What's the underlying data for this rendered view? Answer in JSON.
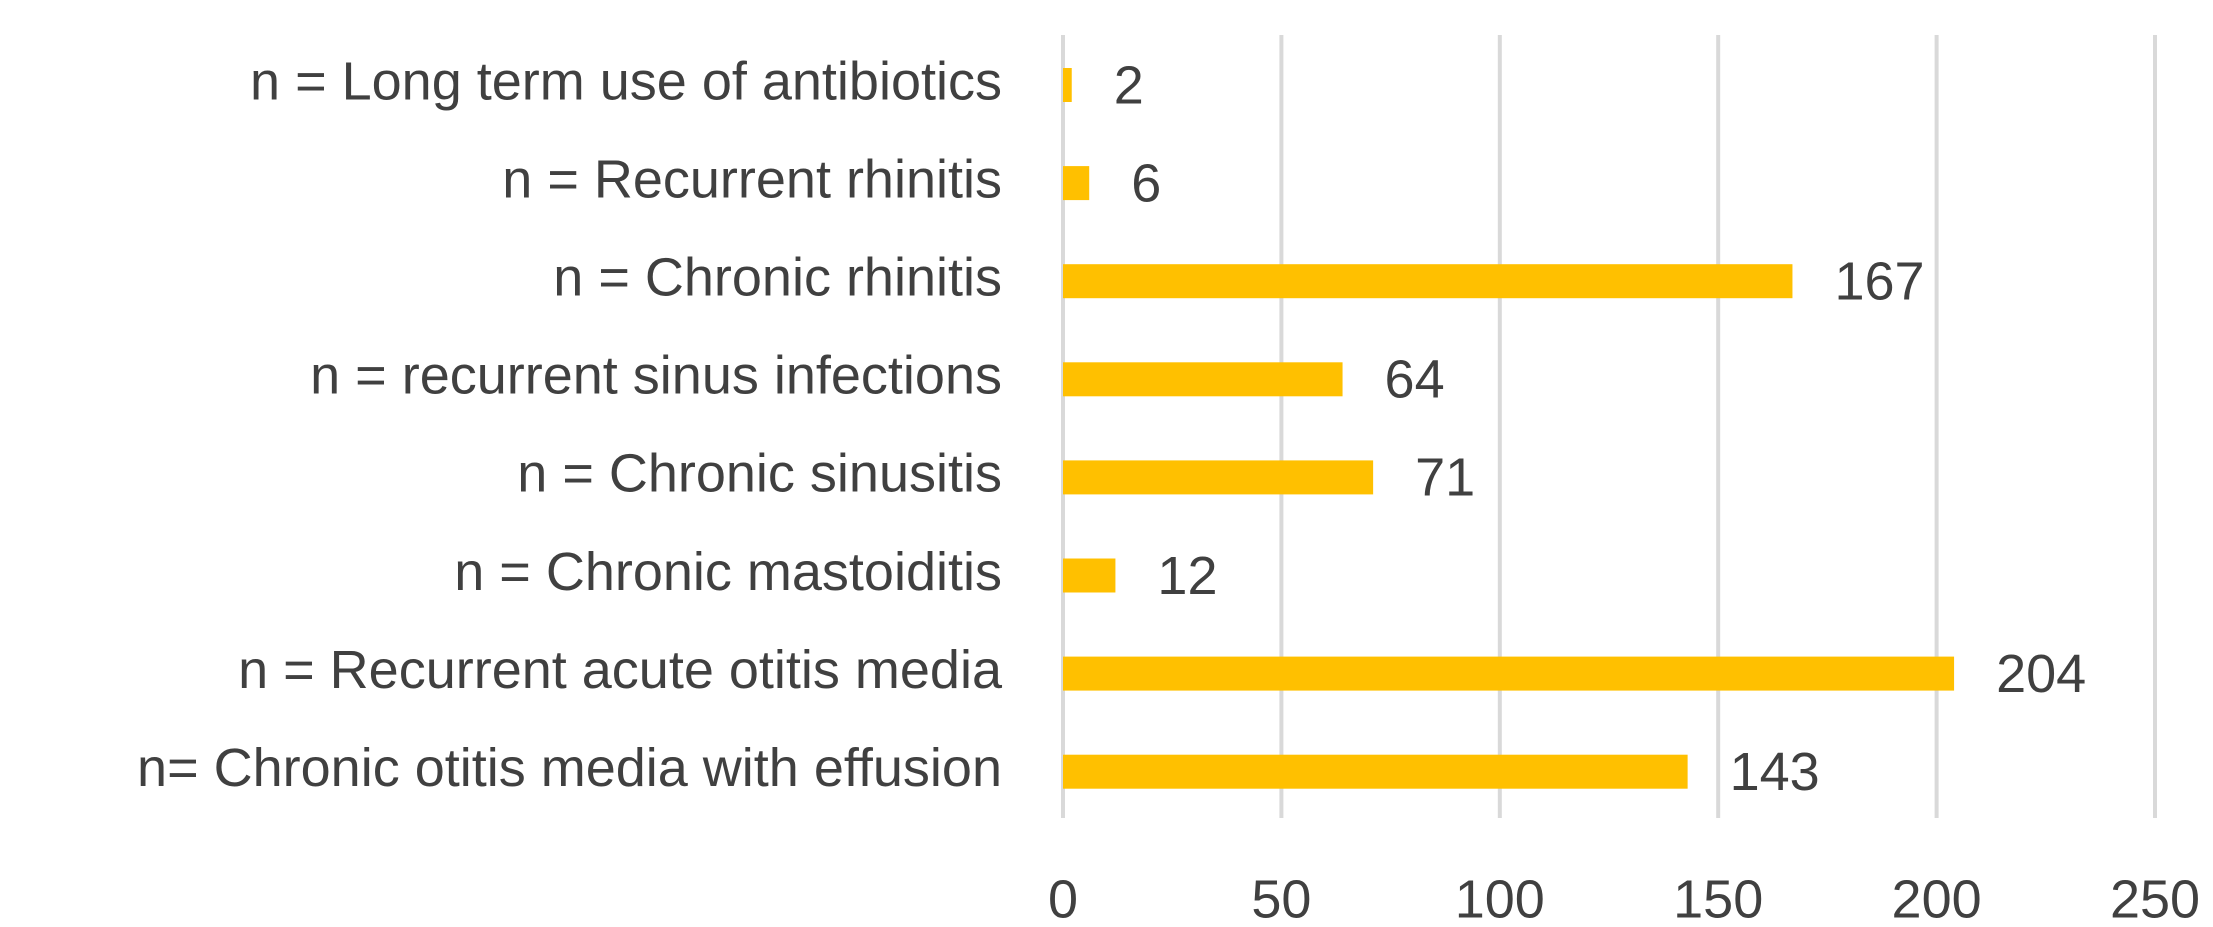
{
  "chart_data": {
    "type": "bar",
    "orientation": "horizontal",
    "categories": [
      "n = Long term use of antibiotics",
      "n = Recurrent rhinitis",
      "n = Chronic rhinitis",
      "n = recurrent sinus infections",
      "n = Chronic sinusitis",
      "n = Chronic mastoiditis",
      "n = Recurrent acute otitis media",
      "n= Chronic otitis media with effusion"
    ],
    "values": [
      2,
      6,
      167,
      64,
      71,
      12,
      204,
      143
    ],
    "color": "#ffc000",
    "xlim": [
      0,
      250
    ],
    "xticks": [
      0,
      50,
      100,
      150,
      200,
      250
    ],
    "grid": true
  }
}
